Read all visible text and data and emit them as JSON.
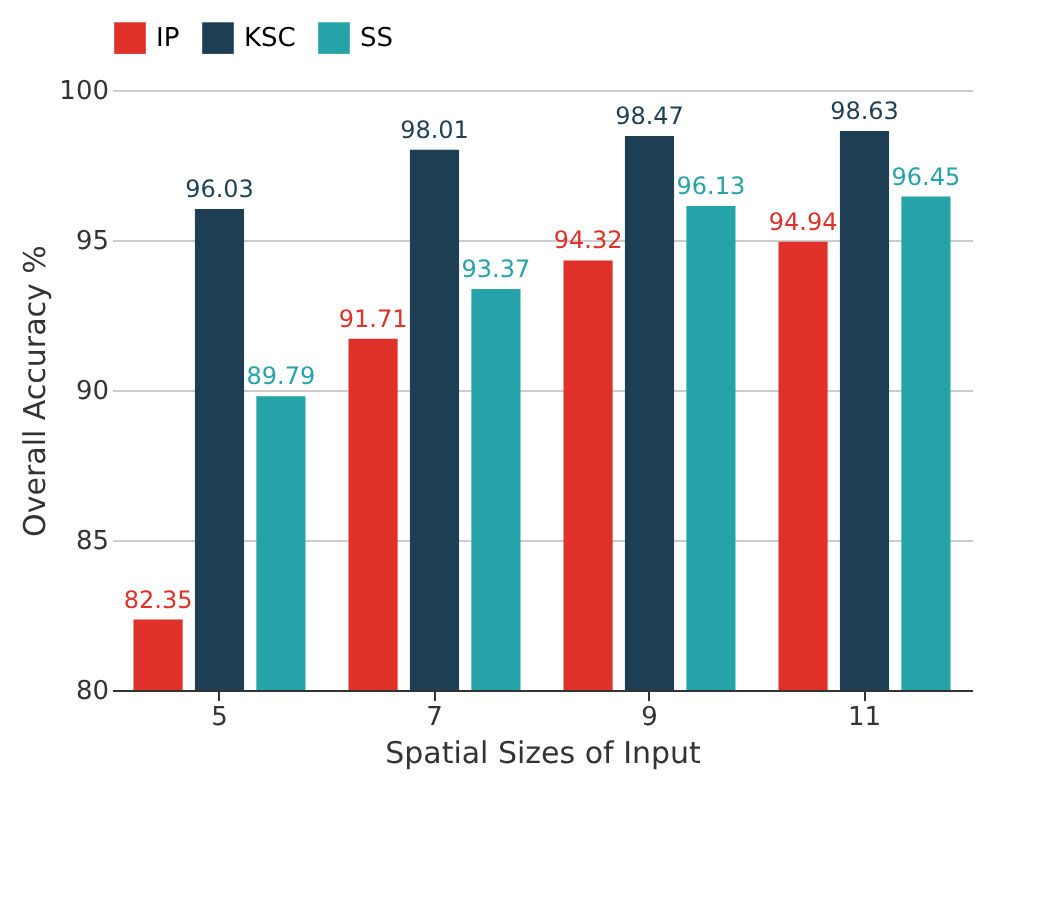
{
  "chart_data": {
    "type": "bar",
    "xlabel": "Spatial Sizes of Input",
    "ylabel": "Overall Accuracy %",
    "categories": [
      "5",
      "7",
      "9",
      "11"
    ],
    "series": [
      {
        "name": "IP",
        "color": "#e0302a",
        "values": [
          82.35,
          91.71,
          94.32,
          94.94
        ]
      },
      {
        "name": "KSC",
        "color": "#1e3f53",
        "values": [
          96.03,
          98.01,
          98.47,
          98.63
        ]
      },
      {
        "name": "SS",
        "color": "#26a3a8",
        "values": [
          89.79,
          93.37,
          96.13,
          96.45
        ]
      }
    ],
    "ylim": [
      80,
      100
    ],
    "yticks": [
      80,
      85,
      90,
      95,
      100
    ],
    "grid": "y",
    "legend": "top",
    "data_labels": true
  }
}
